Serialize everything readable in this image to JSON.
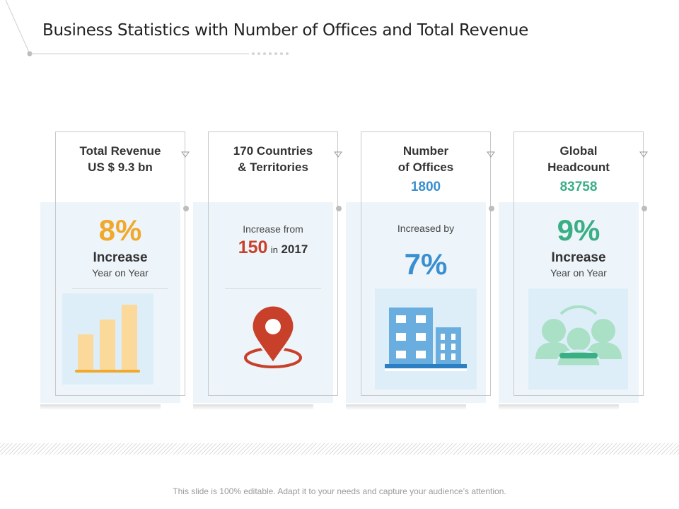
{
  "title": "Business Statistics with  Number of Offices and Total Revenue",
  "colors": {
    "orange": "#f0a92c",
    "red": "#c9402a",
    "blue": "#3a8fd0",
    "green": "#3aae84",
    "panel": "#eef5fa",
    "icon_bg": "#ddeef8"
  },
  "cards": [
    {
      "heading": [
        "Total Revenue",
        "US $ 9.3 bn"
      ],
      "big": "8%",
      "sub1": "Increase",
      "sub2": "Year on Year",
      "icon": "bar-chart-icon"
    },
    {
      "heading": [
        "170 Countries",
        "& Territories"
      ],
      "small_label": "Increase from",
      "value": "150",
      "in_word": "in",
      "year": "2017",
      "icon": "location-pin-icon"
    },
    {
      "heading": [
        "Number",
        "of Offices"
      ],
      "heading_value": "1800",
      "small_label": "Increased by",
      "big": "7%",
      "icon": "office-buildings-icon"
    },
    {
      "heading": [
        "Global",
        "Headcount"
      ],
      "heading_value": "83758",
      "big": "9%",
      "sub1": "Increase",
      "sub2": "Year on Year",
      "icon": "people-group-icon"
    }
  ],
  "footer": "This slide is 100% editable. Adapt it to your needs and capture your audience’s attention."
}
